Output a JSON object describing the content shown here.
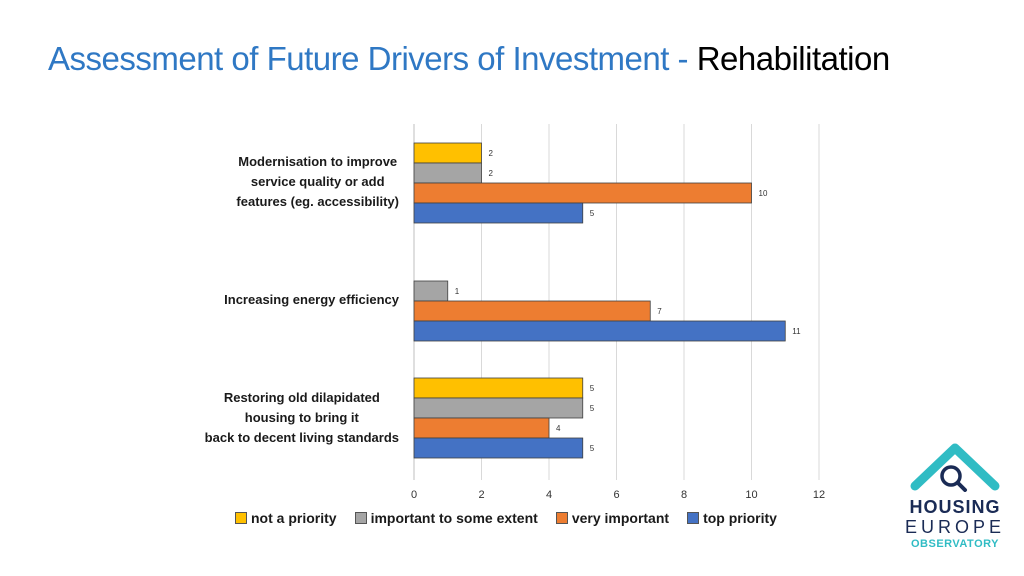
{
  "title": {
    "part1": "Assessment of Future Drivers of Investment - ",
    "part2": "Rehabilitation"
  },
  "chart_data": {
    "type": "bar",
    "orientation": "horizontal",
    "categories": [
      "Modernisation to improve service quality or add features (eg. accessibility)",
      "Increasing energy efficiency",
      "Restoring old dilapidated housing to bring it back to decent living standards"
    ],
    "category_lines": [
      [
        "Modernisation to improve",
        "service quality or add",
        "features (eg. accessibility)"
      ],
      [
        "Increasing energy efficiency"
      ],
      [
        "Restoring old dilapidated",
        "housing to bring it",
        "back to decent living standards"
      ]
    ],
    "series": [
      {
        "name": "not a priority",
        "color": "#ffc000",
        "values": [
          2,
          null,
          5
        ]
      },
      {
        "name": "important to some extent",
        "color": "#a5a5a5",
        "values": [
          2,
          1,
          5
        ]
      },
      {
        "name": "very important",
        "color": "#ed7d31",
        "values": [
          10,
          7,
          4
        ]
      },
      {
        "name": "top priority",
        "color": "#4472c4",
        "values": [
          5,
          11,
          5
        ]
      }
    ],
    "xlim": [
      0,
      12
    ],
    "xticks": [
      0,
      2,
      4,
      6,
      8,
      10,
      12
    ],
    "grid": true,
    "legend_position": "bottom"
  },
  "logo": {
    "line1": "HOUSING",
    "line2": "EUROPE",
    "line3": "OBSERVATORY",
    "color_roof": "#30bcc4",
    "color_text": "#1a2b55"
  }
}
